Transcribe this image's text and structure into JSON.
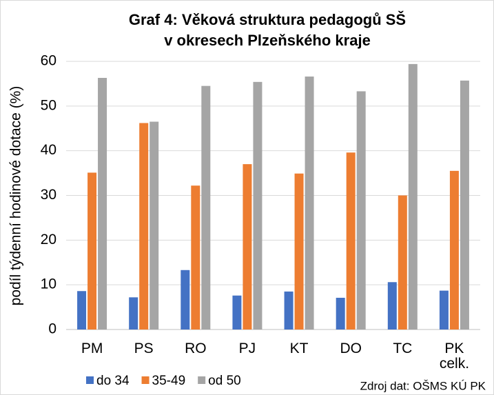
{
  "chart_data": {
    "type": "bar",
    "title": "Graf 4: Věková struktura pedagogů SŠ",
    "subtitle": "v okresech Plzeňského kraje",
    "y_label": "podíl týdenní hodinové dotace (%)",
    "source": "Zdroj dat: OŠMS KÚ PK",
    "categories": [
      "PM",
      "PS",
      "RO",
      "PJ",
      "KT",
      "DO",
      "TC",
      "PK celk."
    ],
    "series": [
      {
        "name": "do 34",
        "color": "#4472c4",
        "values": [
          8.6,
          7.2,
          13.3,
          7.6,
          8.5,
          7.1,
          10.6,
          8.7
        ]
      },
      {
        "name": "35-49",
        "color": "#ed7d31",
        "values": [
          35.1,
          46.2,
          32.2,
          37.0,
          34.9,
          39.6,
          30.0,
          35.5
        ]
      },
      {
        "name": "od 50",
        "color": "#a5a5a5",
        "values": [
          56.3,
          46.5,
          54.5,
          55.4,
          56.6,
          53.3,
          59.4,
          55.7
        ]
      }
    ],
    "ylim": [
      0,
      60
    ],
    "yticks": [
      0,
      10,
      20,
      30,
      40,
      50,
      60
    ],
    "grid": true,
    "legend": "bottom"
  }
}
